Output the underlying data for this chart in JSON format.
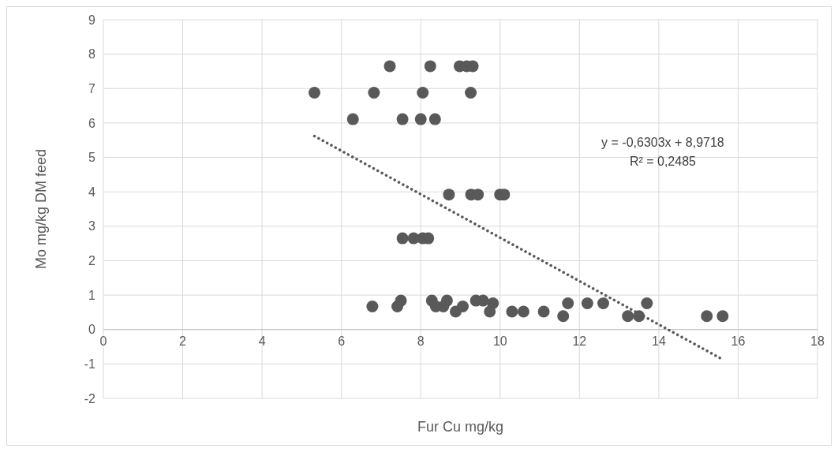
{
  "chart_data": {
    "type": "scatter",
    "xlabel": "Fur Cu mg/kg",
    "ylabel": "Mo mg/kg DM feed",
    "xlim": [
      0,
      18
    ],
    "xticks": [
      0,
      2,
      4,
      6,
      8,
      10,
      12,
      14,
      16,
      18
    ],
    "ylim": [
      -2,
      9
    ],
    "yticks": [
      -2,
      -1,
      0,
      1,
      2,
      3,
      4,
      5,
      6,
      7,
      8,
      9
    ],
    "grid": true,
    "marker": "circle",
    "annotations": [
      "y = -0,6303x + 8,9718",
      "R² = 0,2485"
    ],
    "series": [
      {
        "color": "#595959",
        "x": [
          7.22,
          8.24,
          8.98,
          9.16,
          9.31,
          5.32,
          6.82,
          8.05,
          9.26,
          6.29,
          7.54,
          8.0,
          8.36,
          8.71,
          9.27,
          9.44,
          10.0,
          10.1,
          7.54,
          7.82,
          8.05,
          8.19,
          6.78,
          7.41,
          7.5,
          8.28,
          8.38,
          8.57,
          8.66,
          8.88,
          9.06,
          9.39,
          9.57,
          9.82,
          9.74,
          10.3,
          10.59,
          11.1,
          11.59,
          11.71,
          12.2,
          12.6,
          13.22,
          13.5,
          13.7,
          15.21,
          15.61
        ],
        "values": [
          7.65,
          7.65,
          7.65,
          7.65,
          7.65,
          6.88,
          6.88,
          6.88,
          6.88,
          6.11,
          6.11,
          6.11,
          6.11,
          3.92,
          3.92,
          3.92,
          3.92,
          3.92,
          2.65,
          2.65,
          2.65,
          2.65,
          0.67,
          0.67,
          0.84,
          0.84,
          0.67,
          0.67,
          0.84,
          0.52,
          0.67,
          0.84,
          0.84,
          0.76,
          0.52,
          0.52,
          0.52,
          0.52,
          0.39,
          0.76,
          0.76,
          0.76,
          0.39,
          0.39,
          0.76,
          0.39,
          0.39
        ]
      },
      {
        "type": "line",
        "color": "#595959",
        "line_style": "dotted",
        "marker": "none",
        "x": [
          5.32,
          15.61
        ],
        "values": [
          5.62,
          -0.87
        ]
      }
    ]
  }
}
